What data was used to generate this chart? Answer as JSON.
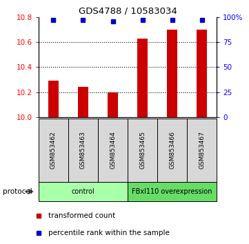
{
  "title": "GDS4788 / 10583034",
  "samples": [
    "GSM853462",
    "GSM853463",
    "GSM853464",
    "GSM853465",
    "GSM853466",
    "GSM853467"
  ],
  "transformed_counts": [
    10.29,
    10.24,
    10.2,
    10.63,
    10.7,
    10.7
  ],
  "percentile_ranks": [
    97,
    97,
    96,
    97,
    97,
    97
  ],
  "ylim_left": [
    10.0,
    10.8
  ],
  "ylim_right": [
    0,
    100
  ],
  "yticks_left": [
    10.0,
    10.2,
    10.4,
    10.6,
    10.8
  ],
  "yticks_right": [
    0,
    25,
    50,
    75,
    100
  ],
  "ytick_labels_right": [
    "0",
    "25",
    "50",
    "75",
    "100%"
  ],
  "bar_color": "#cc0000",
  "dot_color": "#0000cc",
  "grid_ticks": [
    10.2,
    10.4,
    10.6
  ],
  "protocol_groups": [
    {
      "label": "control",
      "samples": [
        0,
        1,
        2
      ],
      "color": "#aaffaa"
    },
    {
      "label": "FBxl110 overexpression",
      "samples": [
        3,
        4,
        5
      ],
      "color": "#66dd66"
    }
  ],
  "protocol_label": "protocol",
  "legend_bar_label": "transformed count",
  "legend_dot_label": "percentile rank within the sample",
  "sample_bg_color": "#d8d8d8",
  "bar_width": 0.35
}
